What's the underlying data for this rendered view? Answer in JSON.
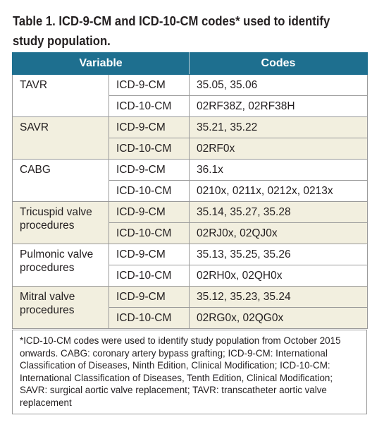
{
  "title": "Table 1. ICD-9-CM and ICD-10-CM codes* used to identify study population.",
  "headers": {
    "variable": "Variable",
    "codes": "Codes"
  },
  "groups": [
    {
      "variable": "TAVR",
      "rows": [
        {
          "system": "ICD-9-CM",
          "codes": "35.05, 35.06"
        },
        {
          "system": "ICD-10-CM",
          "codes": "02RF38Z, 02RF38H"
        }
      ]
    },
    {
      "variable": "SAVR",
      "rows": [
        {
          "system": "ICD-9-CM",
          "codes": "35.21, 35.22"
        },
        {
          "system": "ICD-10-CM",
          "codes": "02RF0x"
        }
      ]
    },
    {
      "variable": "CABG",
      "rows": [
        {
          "system": "ICD-9-CM",
          "codes": "36.1x"
        },
        {
          "system": "ICD-10-CM",
          "codes": "0210x, 0211x, 0212x, 0213x"
        }
      ]
    },
    {
      "variable": "Tricuspid valve procedures",
      "rows": [
        {
          "system": "ICD-9-CM",
          "codes": "35.14, 35.27, 35.28"
        },
        {
          "system": "ICD-10-CM",
          "codes": "02RJ0x, 02QJ0x"
        }
      ]
    },
    {
      "variable": "Pulmonic valve procedures",
      "rows": [
        {
          "system": "ICD-9-CM",
          "codes": "35.13, 35.25, 35.26"
        },
        {
          "system": "ICD-10-CM",
          "codes": "02RH0x, 02QH0x"
        }
      ]
    },
    {
      "variable": "Mitral valve procedures",
      "rows": [
        {
          "system": "ICD-9-CM",
          "codes": "35.12, 35.23, 35.24"
        },
        {
          "system": "ICD-10-CM",
          "codes": "02RG0x, 02QG0x"
        }
      ]
    }
  ],
  "footnote": "*ICD-10-CM codes were used to identify study population from October 2015 onwards. CABG: coronary artery bypass grafting; ICD-9-CM: International Classification of Diseases, Ninth Edition, Clinical Modification; ICD-10-CM: International Classification of Diseases, Tenth Edition, Clinical Modification; SAVR: surgical aortic valve replacement; TAVR: transcatheter aortic valve replacement",
  "colors": {
    "header_bg": "#1e6f8f",
    "alt_row_bg": "#f2efdf",
    "border": "#9a9a9a"
  }
}
